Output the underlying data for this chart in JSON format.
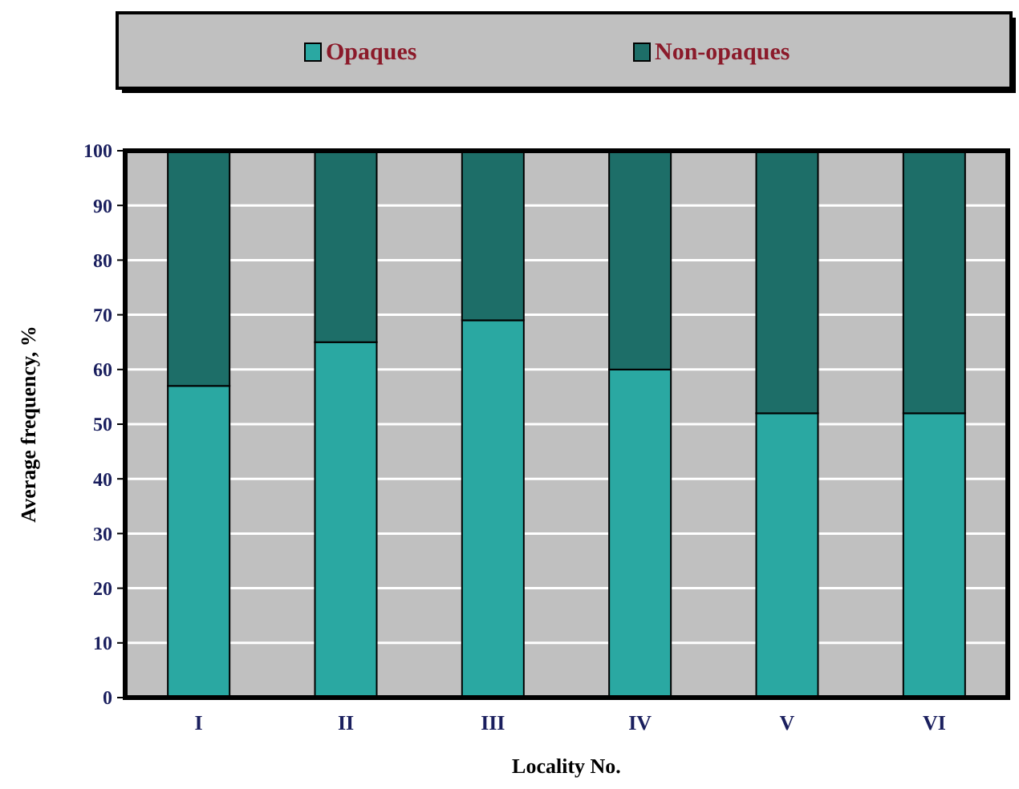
{
  "chart_data": {
    "type": "bar",
    "stacked": true,
    "xlabel": "Locality No.",
    "ylabel": "Average frequency, %",
    "categories": [
      "I",
      "II",
      "III",
      "IV",
      "V",
      "VI"
    ],
    "series": [
      {
        "name": "Opaques",
        "color": "#2aa8a2",
        "values": [
          57,
          65,
          69,
          60,
          52,
          52
        ]
      },
      {
        "name": "Non-opaques",
        "color": "#1d6e68",
        "values": [
          43,
          35,
          31,
          40,
          48,
          48
        ]
      }
    ],
    "ylim": [
      0,
      100
    ],
    "yticks": [
      0,
      10,
      20,
      30,
      40,
      50,
      60,
      70,
      80,
      90,
      100
    ],
    "grid": "y",
    "legend": "top"
  }
}
